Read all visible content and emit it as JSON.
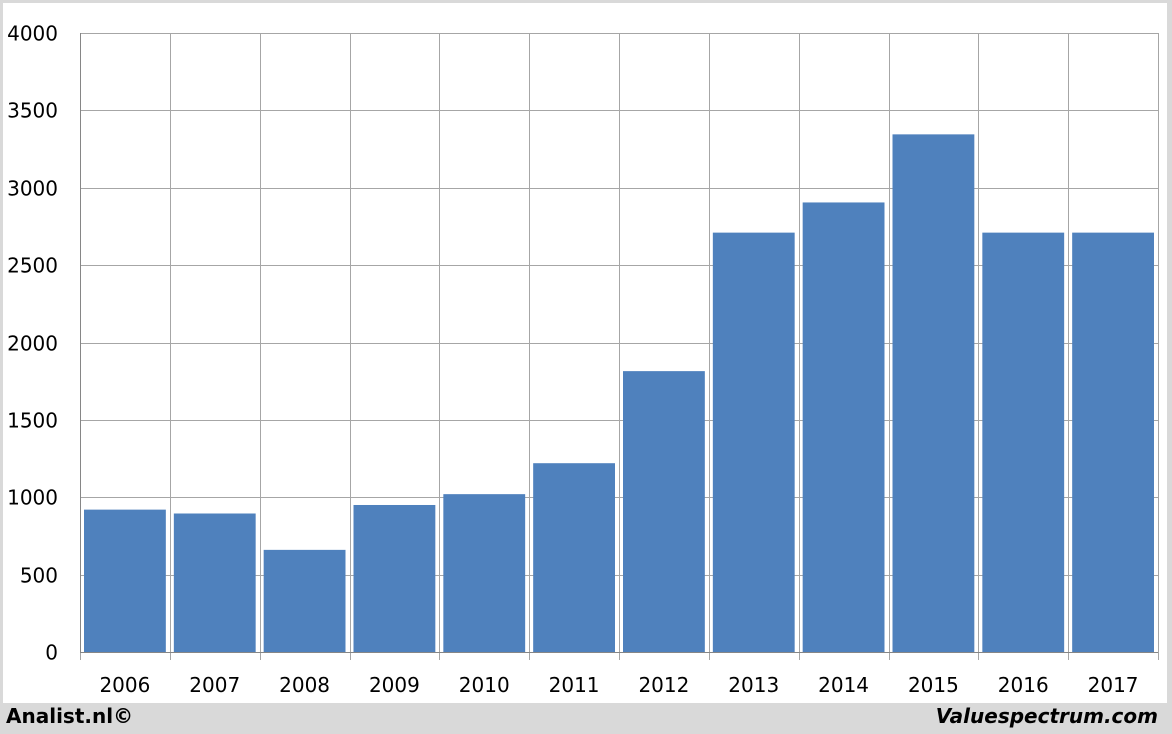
{
  "chart_data": {
    "type": "bar",
    "categories": [
      "2006",
      "2007",
      "2008",
      "2009",
      "2010",
      "2011",
      "2012",
      "2013",
      "2014",
      "2015",
      "2016",
      "2017"
    ],
    "values": [
      920,
      895,
      660,
      950,
      1020,
      1220,
      1815,
      2710,
      2905,
      3345,
      2710,
      2710
    ],
    "title": "",
    "xlabel": "",
    "ylabel": "",
    "ylim": [
      0,
      4000
    ],
    "yticks": [
      0,
      500,
      1000,
      1500,
      2000,
      2500,
      3000,
      3500,
      4000
    ],
    "grid": true,
    "legend": "none",
    "bar_color": "#4f81bd",
    "grid_color": "#a6a6a6"
  },
  "footer": {
    "left": "Analist.nl©",
    "right": "Valuespectrum.com"
  }
}
